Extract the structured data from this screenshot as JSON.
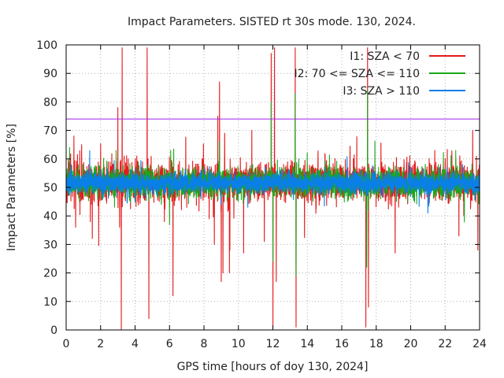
{
  "chart_data": {
    "type": "line",
    "title": "Impact Parameters. SISTED rt 30s mode. 130, 2024.",
    "xlabel": "GPS time [hours of doy 130, 2024]",
    "ylabel": "Impact Parameters [%]",
    "xlim": [
      0,
      24
    ],
    "ylim": [
      0,
      100
    ],
    "xticks": [
      0,
      2,
      4,
      6,
      8,
      10,
      12,
      14,
      16,
      18,
      20,
      22,
      24
    ],
    "yticks": [
      0,
      10,
      20,
      30,
      40,
      50,
      60,
      70,
      80,
      90,
      100
    ],
    "grid": true,
    "legend_position": "top-right",
    "threshold": 74,
    "threshold_color": "#a020f0",
    "series": [
      {
        "name": "I1: SZA < 70",
        "color": "#e41a1c",
        "baseline": 52,
        "noise": 6,
        "spikes": [
          {
            "x": 0.45,
            "y": 68
          },
          {
            "x": 0.55,
            "y": 36
          },
          {
            "x": 0.9,
            "y": 65
          },
          {
            "x": 1.4,
            "y": 38
          },
          {
            "x": 3.0,
            "y": 78
          },
          {
            "x": 3.1,
            "y": 36
          },
          {
            "x": 3.2,
            "y": 0
          },
          {
            "x": 3.25,
            "y": 99
          },
          {
            "x": 4.1,
            "y": 61
          },
          {
            "x": 4.7,
            "y": 99
          },
          {
            "x": 4.8,
            "y": 4
          },
          {
            "x": 5.7,
            "y": 38
          },
          {
            "x": 6.2,
            "y": 12
          },
          {
            "x": 7.0,
            "y": 43
          },
          {
            "x": 8.3,
            "y": 39
          },
          {
            "x": 8.6,
            "y": 30
          },
          {
            "x": 8.8,
            "y": 75
          },
          {
            "x": 8.9,
            "y": 87
          },
          {
            "x": 9.0,
            "y": 17
          },
          {
            "x": 9.1,
            "y": 20
          },
          {
            "x": 9.2,
            "y": 69
          },
          {
            "x": 9.5,
            "y": 28
          },
          {
            "x": 10.3,
            "y": 27
          },
          {
            "x": 11.5,
            "y": 31
          },
          {
            "x": 11.9,
            "y": 97
          },
          {
            "x": 12.0,
            "y": 1
          },
          {
            "x": 12.1,
            "y": 99
          },
          {
            "x": 12.2,
            "y": 17
          },
          {
            "x": 13.3,
            "y": 99
          },
          {
            "x": 13.35,
            "y": 1
          },
          {
            "x": 17.4,
            "y": 1
          },
          {
            "x": 17.5,
            "y": 99
          },
          {
            "x": 17.55,
            "y": 8
          },
          {
            "x": 19.1,
            "y": 27
          },
          {
            "x": 21.4,
            "y": 63
          },
          {
            "x": 22.8,
            "y": 33
          },
          {
            "x": 23.6,
            "y": 70
          },
          {
            "x": 23.9,
            "y": 28
          }
        ]
      },
      {
        "name": "I2: 70 <= SZA <= 110",
        "color": "#1aa81a",
        "baseline": 51.5,
        "noise": 4.5,
        "spikes": [
          {
            "x": 0.2,
            "y": 64
          },
          {
            "x": 2.9,
            "y": 63
          },
          {
            "x": 6.0,
            "y": 37
          },
          {
            "x": 8.9,
            "y": 66
          },
          {
            "x": 11.9,
            "y": 80
          },
          {
            "x": 12.0,
            "y": 24
          },
          {
            "x": 13.3,
            "y": 83
          },
          {
            "x": 13.35,
            "y": 19
          },
          {
            "x": 17.5,
            "y": 84
          },
          {
            "x": 17.45,
            "y": 22
          }
        ]
      },
      {
        "name": "I3: SZA > 110",
        "color": "#0a7fe8",
        "baseline": 51.5,
        "noise": 3.2,
        "spikes": [
          {
            "x": 0.3,
            "y": 58
          },
          {
            "x": 4.0,
            "y": 45
          },
          {
            "x": 9.0,
            "y": 44
          },
          {
            "x": 17.5,
            "y": 47
          },
          {
            "x": 21.0,
            "y": 41
          },
          {
            "x": 23.0,
            "y": 58
          }
        ]
      }
    ]
  }
}
